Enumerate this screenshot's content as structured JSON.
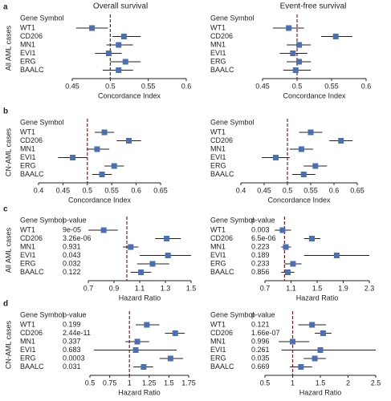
{
  "figure": {
    "column_titles": [
      "Overall survival",
      "Event-free survival"
    ],
    "panels": [
      {
        "letter": "a",
        "row_label": "All AML cases"
      },
      {
        "letter": "b",
        "row_label": "CN-AML cases"
      },
      {
        "letter": "c",
        "row_label": "All AML cases"
      },
      {
        "letter": "d",
        "row_label": "CN-AML cases"
      }
    ]
  },
  "chart_data": [
    {
      "type": "forest",
      "label_header": "Gene Symbol",
      "categories": [
        "WT1",
        "CD206",
        "MN1",
        "EVI1",
        "ERG",
        "BAALC"
      ],
      "values": [
        0.476,
        0.518,
        0.511,
        0.498,
        0.52,
        0.511
      ],
      "lower": [
        0.455,
        0.503,
        0.495,
        0.48,
        0.5,
        0.49
      ],
      "upper": [
        0.497,
        0.54,
        0.53,
        0.515,
        0.54,
        0.53
      ],
      "xlabel": "Concordance Index",
      "xlim": [
        0.45,
        0.6
      ],
      "xticks": [
        0.45,
        0.5,
        0.55,
        0.6
      ],
      "reference": 0.5,
      "color": "#4a6fb5"
    },
    {
      "type": "forest",
      "label_header": "Gene Symbol",
      "categories": [
        "WT1",
        "CD206",
        "MN1",
        "EVI1",
        "ERG",
        "BAALC"
      ],
      "values": [
        0.488,
        0.556,
        0.503,
        0.494,
        0.503,
        0.498
      ],
      "lower": [
        0.465,
        0.535,
        0.485,
        0.475,
        0.485,
        0.48
      ],
      "upper": [
        0.51,
        0.58,
        0.52,
        0.515,
        0.52,
        0.52
      ],
      "xlabel": "Concordance Index",
      "xlim": [
        0.45,
        0.6
      ],
      "xticks": [
        0.45,
        0.5,
        0.55,
        0.6
      ],
      "reference": 0.5,
      "color": "#4a6fb5"
    },
    {
      "type": "forest",
      "label_header": "Gene Symbol",
      "categories": [
        "WT1",
        "CD206",
        "MN1",
        "EVI1",
        "ERG",
        "BAALC"
      ],
      "values": [
        0.535,
        0.585,
        0.52,
        0.47,
        0.555,
        0.53
      ],
      "lower": [
        0.515,
        0.56,
        0.5,
        0.44,
        0.535,
        0.51
      ],
      "upper": [
        0.555,
        0.61,
        0.545,
        0.5,
        0.575,
        0.55
      ],
      "xlabel": "Concordance Index",
      "xlim": [
        0.4,
        0.65
      ],
      "xticks": [
        0.4,
        0.45,
        0.5,
        0.55,
        0.6,
        0.65
      ],
      "reference": 0.5,
      "color": "#4a6fb5"
    },
    {
      "type": "forest",
      "label_header": "Gene Symbol",
      "categories": [
        "WT1",
        "CD206",
        "MN1",
        "EVI1",
        "ERG",
        "BAALC"
      ],
      "values": [
        0.55,
        0.615,
        0.53,
        0.475,
        0.56,
        0.535
      ],
      "lower": [
        0.525,
        0.59,
        0.505,
        0.445,
        0.535,
        0.51
      ],
      "upper": [
        0.575,
        0.64,
        0.555,
        0.505,
        0.585,
        0.56
      ],
      "xlabel": "Concordance Index",
      "xlim": [
        0.4,
        0.65
      ],
      "xticks": [
        0.4,
        0.45,
        0.5,
        0.55,
        0.6,
        0.65
      ],
      "reference": 0.5,
      "color": "#4a6fb5"
    },
    {
      "type": "forest",
      "label_header": "Gene Symbol",
      "pvalue_header": "p-value",
      "categories": [
        "WT1",
        "CD206",
        "MN1",
        "EVI1",
        "ERG",
        "BAALC"
      ],
      "p_values": [
        "9e-05",
        "3.26e-06",
        "0.931",
        "0.043",
        "0.032",
        "0.122"
      ],
      "values": [
        0.82,
        1.31,
        1.03,
        1.32,
        1.2,
        1.11
      ],
      "lower": [
        0.7,
        1.22,
        0.97,
        1.1,
        1.08,
        1.03
      ],
      "upper": [
        0.93,
        1.42,
        1.09,
        1.5,
        1.33,
        1.19
      ],
      "xlabel": "Hazard Ratio",
      "xlim": [
        0.7,
        1.5
      ],
      "xticks": [
        0.7,
        0.9,
        1.1,
        1.3,
        1.5
      ],
      "reference": 1,
      "color": "#4a6fb5"
    },
    {
      "type": "forest",
      "label_header": "Gene Symbol",
      "pvalue_header": "p-value",
      "categories": [
        "WT1",
        "CD206",
        "MN1",
        "EVI1",
        "ERG",
        "BAALC"
      ],
      "p_values": [
        "0.003",
        "6.5e-06",
        "0.223",
        "0.189",
        "0.233",
        "0.856"
      ],
      "values": [
        0.97,
        1.42,
        1.02,
        1.8,
        1.13,
        1.05
      ],
      "lower": [
        0.85,
        1.3,
        0.95,
        1.3,
        1.0,
        0.95
      ],
      "upper": [
        1.1,
        1.55,
        1.1,
        2.3,
        1.26,
        1.15
      ],
      "xlabel": "Hazard Ratio",
      "xlim": [
        0.7,
        2.3
      ],
      "xticks": [
        0.7,
        1.1,
        1.5,
        1.9,
        2.3
      ],
      "reference": 1,
      "color": "#4a6fb5"
    },
    {
      "type": "forest",
      "label_header": "Gene Symbol",
      "pvalue_header": "p-value",
      "categories": [
        "WT1",
        "CD206",
        "MN1",
        "EVI1",
        "ERG",
        "BAALC"
      ],
      "p_values": [
        "0.199",
        "2.44e-11",
        "0.337",
        "0.683",
        "0.0003",
        "0.031"
      ],
      "values": [
        1.22,
        1.58,
        1.1,
        1.08,
        1.52,
        1.18
      ],
      "lower": [
        1.08,
        1.45,
        0.95,
        0.55,
        1.38,
        1.05
      ],
      "upper": [
        1.38,
        1.7,
        1.25,
        1.6,
        1.68,
        1.3
      ],
      "xlabel": "Hazard Ratio",
      "xlim": [
        0.5,
        1.75
      ],
      "xticks": [
        0.5,
        0.75,
        1,
        1.25,
        1.5,
        1.75
      ],
      "reference": 1,
      "color": "#4a6fb5"
    },
    {
      "type": "forest",
      "label_header": "Gene Symbol",
      "pvalue_header": "p-value",
      "categories": [
        "WT1",
        "CD206",
        "MN1",
        "EVI1",
        "ERG",
        "BAALC"
      ],
      "p_values": [
        "0.121",
        "1.66e-07",
        "0.996",
        "0.261",
        "0.035",
        "0.669"
      ],
      "values": [
        1.35,
        1.55,
        1.0,
        1.5,
        1.4,
        1.15
      ],
      "lower": [
        1.1,
        1.4,
        0.75,
        0.8,
        1.2,
        0.95
      ],
      "upper": [
        1.6,
        1.7,
        1.3,
        2.5,
        1.6,
        1.35
      ],
      "xlabel": "Hazard Ratio",
      "xlim": [
        0.5,
        2.5
      ],
      "xticks": [
        0.5,
        1,
        1.5,
        2,
        2.5
      ],
      "reference": 1,
      "color": "#4a6fb5"
    }
  ]
}
